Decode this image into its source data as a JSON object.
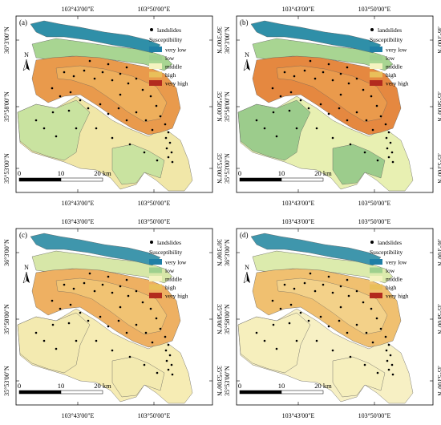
{
  "figure": {
    "coordinates": {
      "lon_west": "103°43'00\"E",
      "lon_east": "103°50'00\"E",
      "lat_top": "36°3'00\"N",
      "lat_mid": "35°58'00\"N",
      "lat_bottom": "35°53'00\"N"
    },
    "legend": {
      "points_label": "landslides",
      "title": "Susceptibility",
      "classes": [
        {
          "label": "very low",
          "color": "#1f7fa6"
        },
        {
          "label": "low",
          "color": "#9fd08e"
        },
        {
          "label": "middle",
          "color": "#f4f3c0"
        },
        {
          "label": "high",
          "color": "#e9bf5a"
        },
        {
          "label": "very high",
          "color": "#b22a1e"
        }
      ]
    },
    "north_arrow": "N",
    "scale_bar": {
      "start": "0",
      "mid": "10",
      "end": "20 km"
    },
    "panels": [
      {
        "label": "(a)",
        "zones": {
          "north": "#2f8fa8",
          "band": "#a8d592",
          "core": "#e99a4c",
          "core2": "#f0b560",
          "periphery": "#c9e3a0",
          "south": "#f1e7a8"
        }
      },
      {
        "label": "(b)",
        "zones": {
          "north": "#2f8fa8",
          "band": "#a8d592",
          "core": "#e58840",
          "core2": "#ec9f50",
          "periphery": "#9ccc8c",
          "south": "#e8f0b2"
        }
      },
      {
        "label": "(c)",
        "zones": {
          "north": "#3f96ac",
          "band": "#d7e7a8",
          "core": "#eeb062",
          "core2": "#f2c878",
          "periphery": "#f3eab0",
          "south": "#f6ecb4"
        }
      },
      {
        "label": "(d)",
        "zones": {
          "north": "#3f96ac",
          "band": "#dcebad",
          "core": "#f0c070",
          "core2": "#f4d690",
          "periphery": "#f6efbd",
          "south": "#f7f0c4"
        }
      }
    ]
  },
  "icons": {
    "north_arrow": "north-arrow-icon",
    "landslide_point": "landslide-point-icon"
  }
}
